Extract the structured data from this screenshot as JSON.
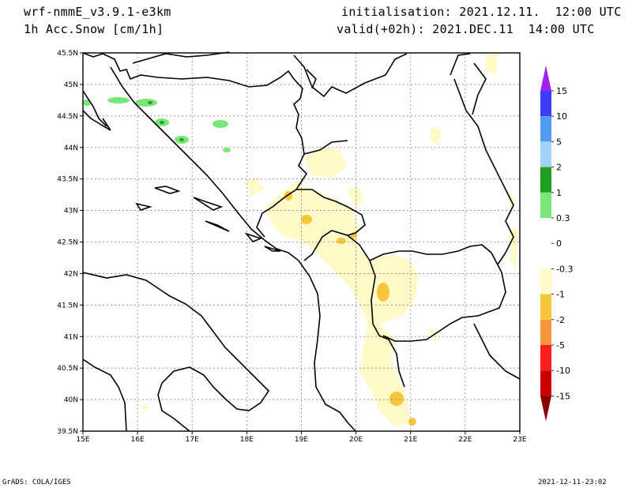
{
  "header": {
    "model": "wrf-nmmE_v3.9.1-e3km",
    "field": "1h Acc.Snow [cm/1h]",
    "init": "initialisation: 2021.12.11.  12:00 UTC",
    "valid": "valid(+02h): 2021.DEC.11  14:00 UTC"
  },
  "map": {
    "lon_ticks": [
      "15E",
      "16E",
      "17E",
      "18E",
      "19E",
      "20E",
      "21E",
      "22E",
      "23E"
    ],
    "lat_ticks": [
      "45.5N",
      "45N",
      "44.5N",
      "44N",
      "43.5N",
      "43N",
      "42.5N",
      "42N",
      "41.5N",
      "41N",
      "40.5N",
      "40N",
      "39.5N"
    ],
    "grid": true
  },
  "legend": {
    "labels": [
      "15",
      "10",
      "5",
      "2",
      "1",
      "0.3",
      "0",
      "-0.3",
      "-1",
      "-2",
      "-5",
      "-10",
      "-15"
    ],
    "colors": [
      "#a020f0",
      "#3c3cff",
      "#4f9cf0",
      "#a0d2fa",
      "#1ea01e",
      "#78e678",
      "#ffffff",
      "#ffffff",
      "#fffac8",
      "#f5c83c",
      "#f5963c",
      "#ff1e1e",
      "#c80000",
      "#8b0000"
    ]
  },
  "footer": {
    "left": "GrADS: COLA/IGES",
    "right": "2021-12-11-23:02"
  }
}
